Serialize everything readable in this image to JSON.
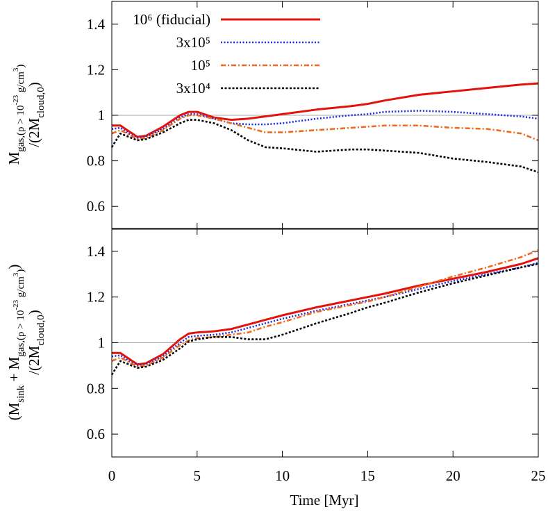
{
  "chart_data": [
    {
      "type": "line",
      "ylabel": [
        [
          "M",
          "gas,(ρ > 10",
          "-23",
          " g/cm",
          "3",
          ")"
        ],
        [
          "/(2M",
          "cloud,0",
          ")"
        ]
      ],
      "x": [
        0,
        0.5,
        1,
        1.5,
        2,
        3,
        4,
        4.5,
        5,
        6,
        7,
        8,
        9,
        10,
        12,
        14,
        15,
        16,
        18,
        20,
        22,
        24,
        25
      ],
      "xlim": [
        0,
        25
      ],
      "xticks": [
        0,
        5,
        10,
        15,
        20,
        25
      ],
      "ylim": [
        0.5,
        1.5
      ],
      "yticks": [
        0.6,
        0.8,
        1,
        1.2,
        1.4
      ],
      "hline": 1,
      "legend": "top-left",
      "series": [
        {
          "name": "10⁶ (fiducial)",
          "color": "#e3120b",
          "dash": "solid",
          "values": [
            0.955,
            0.955,
            0.93,
            0.905,
            0.91,
            0.95,
            1.0,
            1.015,
            1.015,
            0.99,
            0.98,
            0.985,
            0.995,
            1.005,
            1.025,
            1.04,
            1.05,
            1.065,
            1.09,
            1.105,
            1.12,
            1.135,
            1.14
          ]
        },
        {
          "name": "3x10⁵",
          "color": "#1a2ee0",
          "dash": "dot",
          "values": [
            0.94,
            0.945,
            0.92,
            0.9,
            0.905,
            0.94,
            0.99,
            1.005,
            1.005,
            0.985,
            0.965,
            0.96,
            0.96,
            0.965,
            0.985,
            1.0,
            1.005,
            1.015,
            1.02,
            1.015,
            1.005,
            0.995,
            0.985
          ]
        },
        {
          "name": "10⁵",
          "color": "#f06a1e",
          "dash": "dashdot",
          "values": [
            0.92,
            0.935,
            0.915,
            0.895,
            0.9,
            0.935,
            0.985,
            1.0,
            1.0,
            0.985,
            0.965,
            0.945,
            0.925,
            0.925,
            0.935,
            0.945,
            0.95,
            0.955,
            0.955,
            0.945,
            0.94,
            0.92,
            0.89
          ]
        },
        {
          "name": "3x10⁴",
          "color": "#000000",
          "dash": "dash",
          "values": [
            0.86,
            0.92,
            0.905,
            0.89,
            0.895,
            0.925,
            0.965,
            0.98,
            0.98,
            0.965,
            0.935,
            0.89,
            0.86,
            0.855,
            0.84,
            0.85,
            0.85,
            0.845,
            0.835,
            0.81,
            0.795,
            0.775,
            0.75
          ]
        }
      ]
    },
    {
      "type": "line",
      "ylabel": [
        [
          "(M",
          "sink",
          " + M",
          "gas,(ρ > 10",
          "-23",
          " g/cm",
          "3",
          ")",
          ")"
        ],
        [
          "/(2M",
          "cloud,0",
          ")"
        ]
      ],
      "xlabel": "Time [Myr]",
      "x": [
        0,
        0.5,
        1,
        1.5,
        2,
        3,
        4,
        4.5,
        5,
        6,
        7,
        8,
        9,
        10,
        12,
        14,
        15,
        16,
        18,
        20,
        22,
        24,
        25
      ],
      "xlim": [
        0,
        25
      ],
      "xticks": [
        0,
        5,
        10,
        15,
        20,
        25
      ],
      "ylim": [
        0.5,
        1.5
      ],
      "yticks": [
        0.6,
        0.8,
        1,
        1.2,
        1.4
      ],
      "hline": 1,
      "series": [
        {
          "color": "#e3120b",
          "dash": "solid",
          "values": [
            0.955,
            0.955,
            0.93,
            0.905,
            0.91,
            0.95,
            1.015,
            1.04,
            1.045,
            1.05,
            1.06,
            1.08,
            1.1,
            1.12,
            1.155,
            1.185,
            1.2,
            1.215,
            1.25,
            1.28,
            1.31,
            1.345,
            1.37
          ]
        },
        {
          "color": "#1a2ee0",
          "dash": "dot",
          "values": [
            0.94,
            0.945,
            0.92,
            0.9,
            0.905,
            0.94,
            1.0,
            1.025,
            1.03,
            1.035,
            1.045,
            1.065,
            1.085,
            1.105,
            1.14,
            1.17,
            1.185,
            1.2,
            1.235,
            1.27,
            1.3,
            1.33,
            1.35
          ]
        },
        {
          "color": "#f06a1e",
          "dash": "dashdot",
          "values": [
            0.92,
            0.935,
            0.915,
            0.895,
            0.9,
            0.935,
            0.99,
            1.01,
            1.02,
            1.025,
            1.035,
            1.045,
            1.07,
            1.09,
            1.135,
            1.165,
            1.18,
            1.2,
            1.245,
            1.29,
            1.33,
            1.375,
            1.405
          ]
        },
        {
          "color": "#000000",
          "dash": "dash",
          "values": [
            0.86,
            0.92,
            0.905,
            0.89,
            0.895,
            0.925,
            0.975,
            1.005,
            1.015,
            1.025,
            1.025,
            1.015,
            1.015,
            1.035,
            1.085,
            1.13,
            1.155,
            1.175,
            1.22,
            1.26,
            1.295,
            1.33,
            1.345
          ]
        }
      ]
    }
  ]
}
